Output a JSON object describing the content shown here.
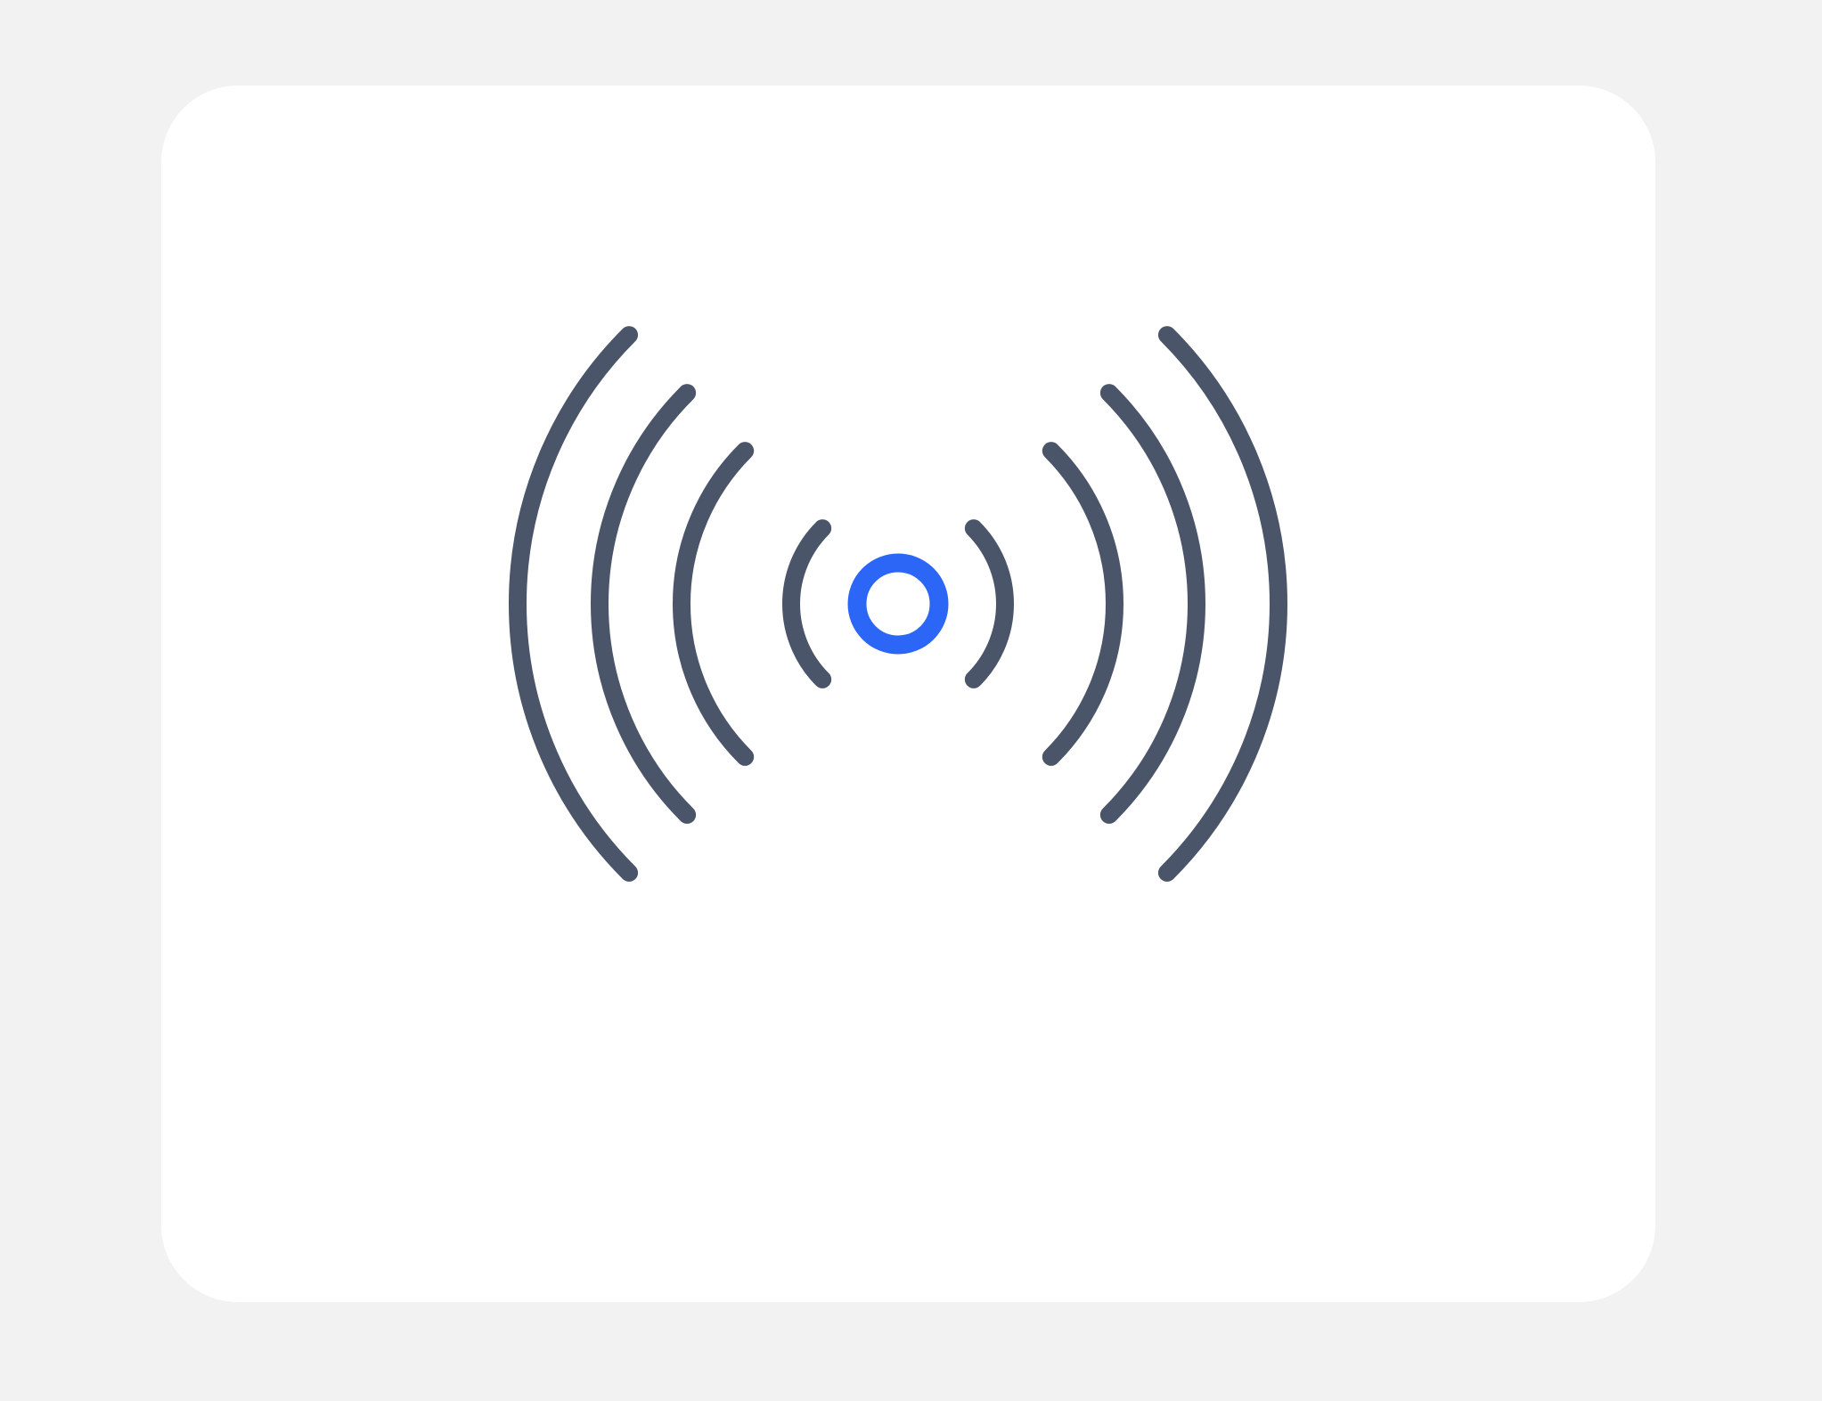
{
  "colors": {
    "page_background": "#f2f2f2",
    "card_background": "#ffffff",
    "wave_stroke": "#4b5569",
    "center_ring": "#2c66f6"
  },
  "icons": {
    "main": "broadcast-signal-icon",
    "center": "signal-source-ring",
    "waves": "signal-wave-arcs"
  }
}
